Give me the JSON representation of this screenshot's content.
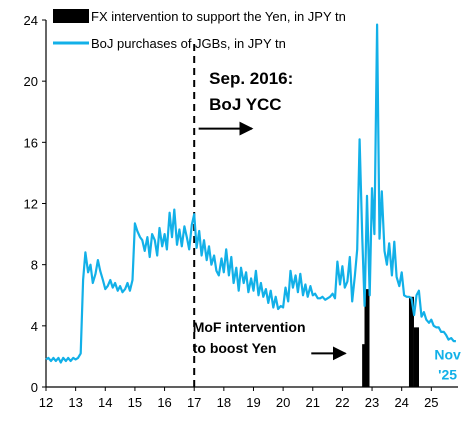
{
  "colors": {
    "boj": "#12b0e8",
    "fx": "#000000",
    "axis": "#000000"
  },
  "chart_data": {
    "type": "line+bar",
    "title": "",
    "xlabel": "",
    "ylabel": "",
    "xlim": [
      12,
      25.9
    ],
    "ylim": [
      0,
      24
    ],
    "xticks": [
      12,
      13,
      14,
      15,
      16,
      17,
      18,
      19,
      20,
      21,
      22,
      23,
      24,
      25
    ],
    "xtick_labels": [
      "12",
      "13",
      "14",
      "15",
      "16",
      "17",
      "18",
      "19",
      "20",
      "21",
      "22",
      "23",
      "24",
      "25"
    ],
    "yticks": [
      0,
      4,
      8,
      12,
      16,
      20,
      24
    ],
    "ytick_labels": [
      "0",
      "4",
      "8",
      "12",
      "16",
      "20",
      "24"
    ],
    "grid": false,
    "legend_position": "top-left",
    "legend": [
      {
        "key": "fx",
        "label": "FX intervention to support the Yen, in JPY tn"
      },
      {
        "key": "boj",
        "label": "BoJ purchases of JGBs, in JPY tn"
      }
    ],
    "series": [
      {
        "name": "BoJ purchases of JGBs, in JPY tn",
        "type": "line",
        "color": "#12b0e8",
        "points": [
          [
            12.0,
            1.8
          ],
          [
            12.08,
            1.9
          ],
          [
            12.17,
            1.7
          ],
          [
            12.25,
            1.9
          ],
          [
            12.33,
            1.7
          ],
          [
            12.42,
            1.9
          ],
          [
            12.5,
            1.6
          ],
          [
            12.58,
            1.9
          ],
          [
            12.67,
            1.7
          ],
          [
            12.75,
            1.9
          ],
          [
            12.83,
            1.7
          ],
          [
            12.92,
            1.9
          ],
          [
            13.0,
            1.8
          ],
          [
            13.08,
            1.9
          ],
          [
            13.17,
            2.2
          ],
          [
            13.25,
            7.0
          ],
          [
            13.33,
            8.8
          ],
          [
            13.42,
            7.5
          ],
          [
            13.5,
            8.0
          ],
          [
            13.58,
            6.8
          ],
          [
            13.67,
            7.4
          ],
          [
            13.75,
            8.3
          ],
          [
            13.83,
            7.6
          ],
          [
            13.92,
            7.0
          ],
          [
            14.0,
            6.4
          ],
          [
            14.08,
            6.6
          ],
          [
            14.17,
            7.0
          ],
          [
            14.25,
            6.5
          ],
          [
            14.33,
            6.8
          ],
          [
            14.42,
            6.3
          ],
          [
            14.5,
            6.6
          ],
          [
            14.58,
            6.2
          ],
          [
            14.67,
            6.4
          ],
          [
            14.75,
            6.8
          ],
          [
            14.83,
            6.3
          ],
          [
            14.92,
            7.0
          ],
          [
            15.0,
            10.7
          ],
          [
            15.08,
            10.2
          ],
          [
            15.17,
            9.8
          ],
          [
            15.25,
            9.6
          ],
          [
            15.33,
            8.9
          ],
          [
            15.42,
            9.8
          ],
          [
            15.5,
            8.5
          ],
          [
            15.58,
            10.0
          ],
          [
            15.67,
            9.6
          ],
          [
            15.75,
            8.6
          ],
          [
            15.83,
            10.4
          ],
          [
            15.92,
            9.2
          ],
          [
            16.0,
            10.0
          ],
          [
            16.08,
            9.0
          ],
          [
            16.17,
            11.4
          ],
          [
            16.25,
            9.8
          ],
          [
            16.33,
            11.6
          ],
          [
            16.42,
            9.3
          ],
          [
            16.5,
            10.3
          ],
          [
            16.58,
            9.2
          ],
          [
            16.67,
            10.5
          ],
          [
            16.75,
            9.8
          ],
          [
            16.83,
            9.0
          ],
          [
            16.92,
            10.6
          ],
          [
            17.0,
            11.3
          ],
          [
            17.08,
            9.1
          ],
          [
            17.17,
            10.2
          ],
          [
            17.25,
            8.6
          ],
          [
            17.33,
            9.6
          ],
          [
            17.42,
            8.3
          ],
          [
            17.5,
            9.2
          ],
          [
            17.58,
            8.0
          ],
          [
            17.67,
            8.6
          ],
          [
            17.75,
            7.6
          ],
          [
            17.83,
            7.3
          ],
          [
            17.92,
            8.4
          ],
          [
            18.0,
            7.5
          ],
          [
            18.08,
            9.0
          ],
          [
            18.17,
            7.3
          ],
          [
            18.25,
            8.5
          ],
          [
            18.33,
            6.8
          ],
          [
            18.42,
            7.8
          ],
          [
            18.5,
            6.3
          ],
          [
            18.58,
            7.8
          ],
          [
            18.67,
            6.8
          ],
          [
            18.75,
            7.5
          ],
          [
            18.83,
            6.2
          ],
          [
            18.92,
            7.1
          ],
          [
            19.0,
            6.3
          ],
          [
            19.08,
            7.6
          ],
          [
            19.17,
            6.0
          ],
          [
            19.25,
            6.8
          ],
          [
            19.33,
            5.9
          ],
          [
            19.42,
            6.4
          ],
          [
            19.5,
            5.5
          ],
          [
            19.58,
            6.3
          ],
          [
            19.67,
            5.2
          ],
          [
            19.75,
            5.9
          ],
          [
            19.83,
            5.1
          ],
          [
            19.92,
            5.3
          ],
          [
            20.0,
            5.2
          ],
          [
            20.08,
            6.5
          ],
          [
            20.17,
            5.6
          ],
          [
            20.25,
            7.6
          ],
          [
            20.33,
            6.5
          ],
          [
            20.42,
            7.3
          ],
          [
            20.5,
            6.2
          ],
          [
            20.58,
            7.4
          ],
          [
            20.67,
            6.0
          ],
          [
            20.75,
            6.7
          ],
          [
            20.83,
            5.9
          ],
          [
            20.92,
            6.6
          ],
          [
            21.0,
            6.0
          ],
          [
            21.08,
            6.1
          ],
          [
            21.17,
            5.8
          ],
          [
            21.25,
            5.8
          ],
          [
            21.33,
            5.9
          ],
          [
            21.42,
            5.7
          ],
          [
            21.5,
            5.8
          ],
          [
            21.58,
            5.9
          ],
          [
            21.67,
            6.1
          ],
          [
            21.75,
            5.8
          ],
          [
            21.83,
            8.2
          ],
          [
            21.92,
            6.7
          ],
          [
            22.0,
            7.9
          ],
          [
            22.08,
            6.5
          ],
          [
            22.17,
            6.9
          ],
          [
            22.25,
            8.5
          ],
          [
            22.33,
            5.6
          ],
          [
            22.42,
            7.3
          ],
          [
            22.5,
            9.0
          ],
          [
            22.58,
            16.2
          ],
          [
            22.67,
            9.7
          ],
          [
            22.75,
            5.3
          ],
          [
            22.83,
            12.5
          ],
          [
            22.92,
            6.0
          ],
          [
            23.0,
            13.0
          ],
          [
            23.08,
            10.0
          ],
          [
            23.17,
            23.7
          ],
          [
            23.25,
            9.7
          ],
          [
            23.33,
            12.8
          ],
          [
            23.42,
            8.9
          ],
          [
            23.5,
            8.0
          ],
          [
            23.58,
            9.4
          ],
          [
            23.67,
            7.3
          ],
          [
            23.75,
            9.5
          ],
          [
            23.83,
            7.2
          ],
          [
            23.92,
            6.6
          ],
          [
            24.0,
            7.5
          ],
          [
            24.08,
            6.0
          ],
          [
            24.17,
            5.9
          ],
          [
            24.25,
            5.9
          ],
          [
            24.33,
            5.8
          ],
          [
            24.42,
            4.7
          ],
          [
            24.5,
            6.0
          ],
          [
            24.58,
            6.3
          ],
          [
            24.67,
            4.6
          ],
          [
            24.75,
            4.9
          ],
          [
            24.83,
            4.4
          ],
          [
            24.92,
            4.2
          ],
          [
            25.0,
            4.4
          ],
          [
            25.08,
            4.0
          ],
          [
            25.17,
            3.9
          ],
          [
            25.25,
            3.9
          ],
          [
            25.33,
            3.6
          ],
          [
            25.42,
            3.6
          ],
          [
            25.5,
            3.4
          ],
          [
            25.58,
            3.1
          ],
          [
            25.67,
            3.2
          ],
          [
            25.75,
            3.0
          ],
          [
            25.83,
            3.0
          ]
        ]
      },
      {
        "name": "FX intervention to support the Yen, in JPY tn",
        "type": "bar",
        "color": "#000000",
        "points": [
          [
            22.75,
            2.8
          ],
          [
            22.83,
            6.4
          ],
          [
            24.33,
            5.9
          ],
          [
            24.5,
            3.9
          ]
        ]
      }
    ],
    "annotations": [
      {
        "text_lines": [
          "Sep. 2016:",
          "BoJ YCC"
        ],
        "at": [
          17.1,
          19.8
        ],
        "style": "big"
      },
      {
        "text_lines": [
          "MoF intervention",
          "to boost Yen"
        ],
        "at": [
          16.95,
          3.6
        ],
        "style": "mid"
      },
      {
        "text_lines": [
          "Nov",
          "'25"
        ],
        "at": [
          25.55,
          1.8
        ],
        "style": "blue"
      }
    ],
    "vline": {
      "x": 17.0,
      "style": "dashed"
    },
    "arrows": [
      {
        "from": [
          17.15,
          16.9
        ],
        "to": [
          18.95,
          16.9
        ]
      },
      {
        "from": [
          20.95,
          2.2
        ],
        "to": [
          22.1,
          2.2
        ]
      }
    ]
  }
}
